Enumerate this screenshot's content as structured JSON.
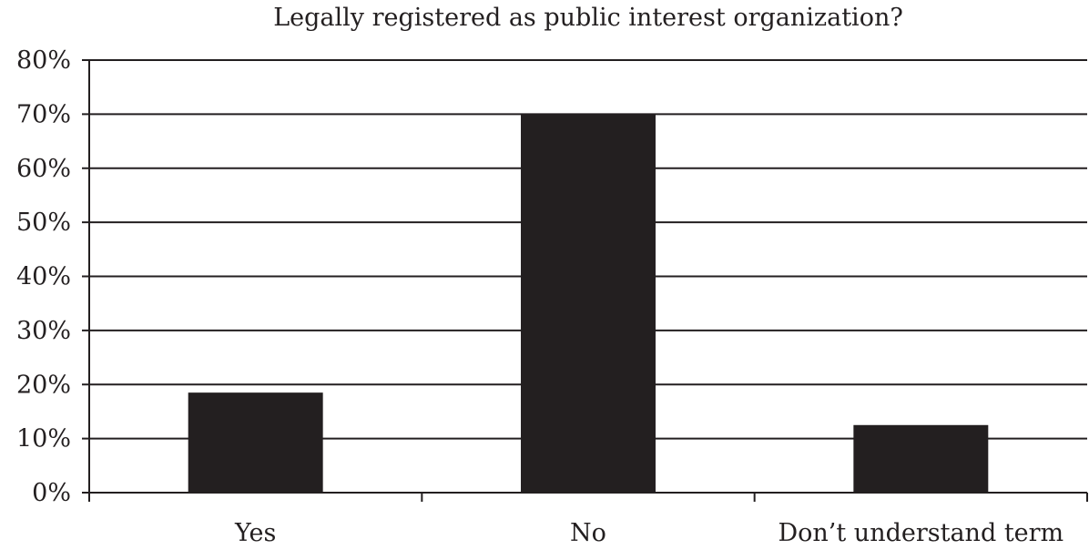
{
  "chart_data": {
    "type": "bar",
    "title": "Legally registered as public interest organization?",
    "xlabel": "",
    "ylabel": "",
    "categories": [
      "Yes",
      "No",
      "Don’t understand term"
    ],
    "values": [
      18.5,
      70,
      12.5
    ],
    "ylim": [
      0,
      80
    ],
    "yticks": [
      0,
      10,
      20,
      30,
      40,
      50,
      60,
      70,
      80
    ],
    "ytick_labels": [
      "0%",
      "10%",
      "20%",
      "30%",
      "40%",
      "50%",
      "60%",
      "70%",
      "80%"
    ],
    "grid": true,
    "legend": "none",
    "bar_color": "#231f20"
  }
}
